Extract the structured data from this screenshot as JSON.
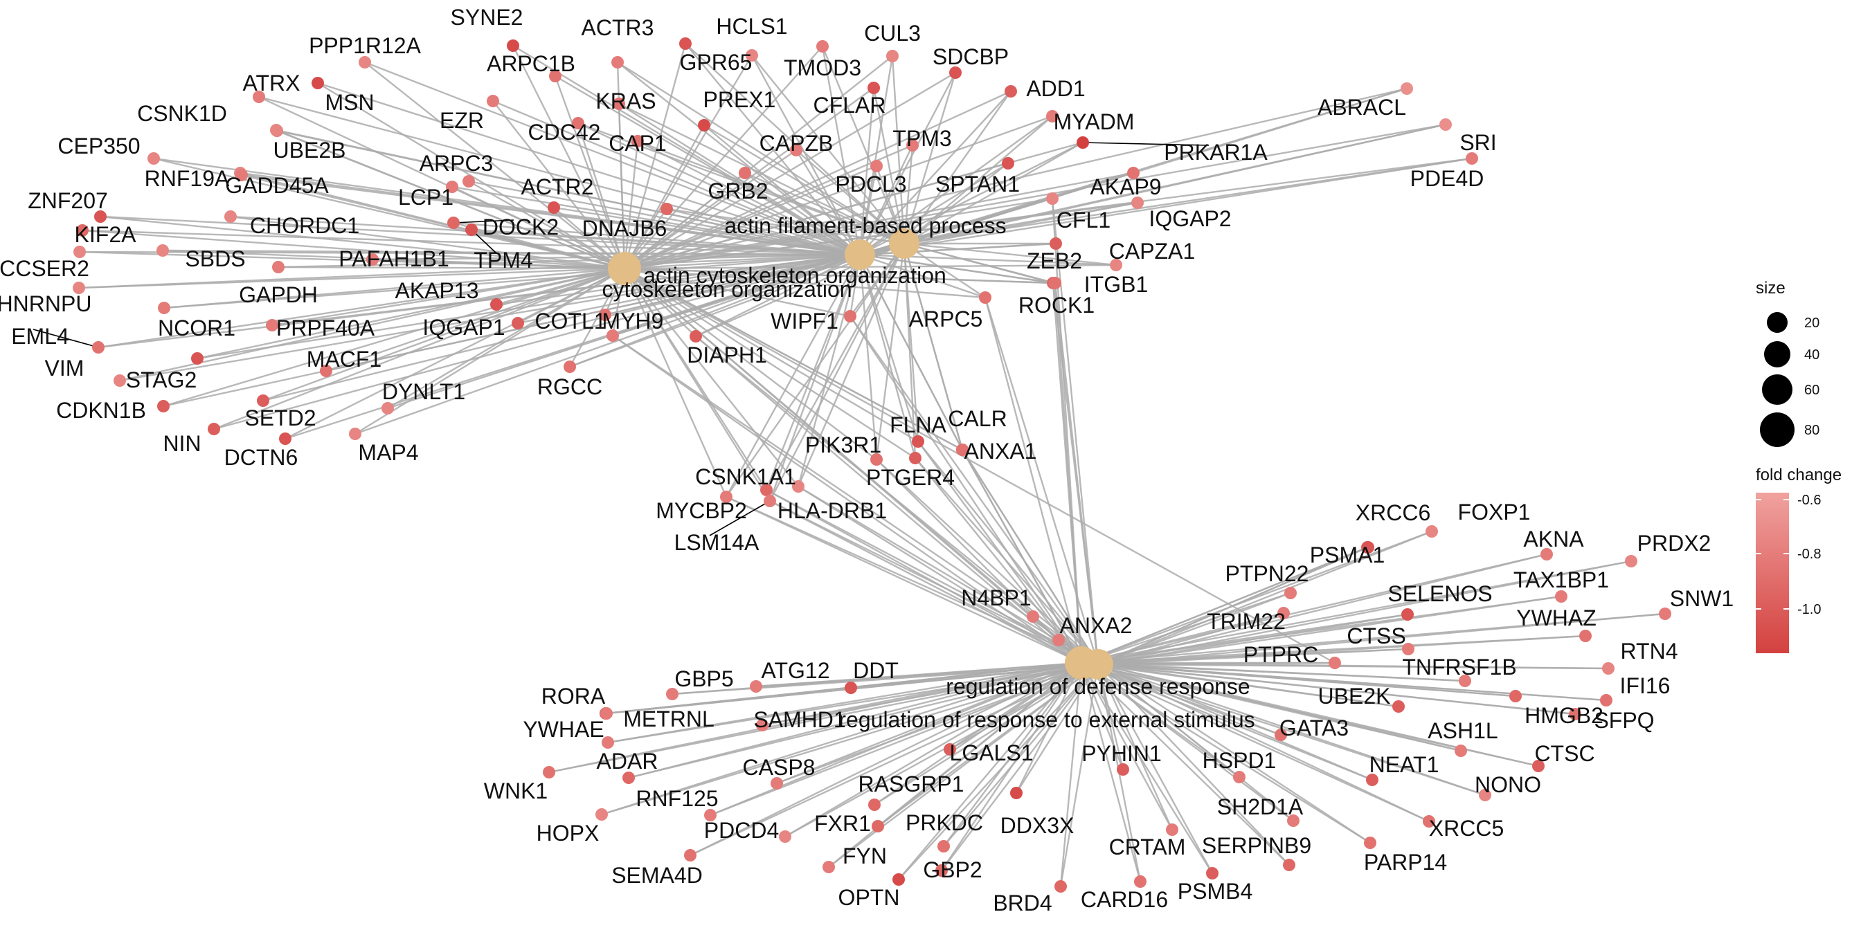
{
  "graph": {
    "category_nodes": [
      {
        "id": "c1",
        "name": "cytoskeleton organization"
      },
      {
        "id": "c2",
        "name": "actin cytoskeleton organization"
      },
      {
        "id": "c3",
        "name": "actin filament-based process"
      },
      {
        "id": "c4",
        "name": "regulation of defense response"
      },
      {
        "id": "c5",
        "name": "regulation of response to external stimulus"
      }
    ],
    "gene_nodes": [
      "SYNE2",
      "PPP1R12A",
      "ACTR3",
      "ARPC1B",
      "HCLS1",
      "GPR65",
      "CUL3",
      "TMOD3",
      "SDCBP",
      "ATRX",
      "MSN",
      "KRAS",
      "PREX1",
      "ADD1",
      "CFLAR",
      "ABRACL",
      "SRI",
      "MYADM",
      "CSNK1D",
      "EZR",
      "CDC42",
      "UBE2B",
      "CAP1",
      "TPM3",
      "CAPZB",
      "PRKAR1A",
      "PDE4D",
      "CEP350",
      "ARPC3",
      "RNF19A",
      "GADD45A",
      "ACTR2",
      "GRB2",
      "PDCL3",
      "SPTAN1",
      "AKAP9",
      "LCP1",
      "ZNF207",
      "DOCK2",
      "CHORDC1",
      "DNAJB6",
      "CFL1",
      "IQGAP2",
      "KIF2A",
      "TPM4",
      "SBDS",
      "PAFAH1B1",
      "ZEB2",
      "CAPZA1",
      "CCSER2",
      "ITGB1",
      "GAPDH",
      "AKAP13",
      "HNRNPU",
      "ROCK1",
      "NCOR1",
      "PRPF40A",
      "IQGAP1",
      "COTL1",
      "MYH9",
      "WIPF1",
      "ARPC5",
      "EML4",
      "VIM",
      "STAG2",
      "MACF1",
      "DIAPH1",
      "RGCC",
      "DYNLT1",
      "CDKN1B",
      "NIN",
      "SETD2",
      "DCTN6",
      "MAP4",
      "FLNA",
      "CALR",
      "PIK3R1",
      "ANXA1",
      "PTGER4",
      "CSNK1A1",
      "MYCBP2",
      "HLA-DRB1",
      "LSM14A",
      "XRCC6",
      "FOXP1",
      "PSMA1",
      "AKNA",
      "PRDX2",
      "PTPN22",
      "TAX1BP1",
      "SELENOS",
      "SNW1",
      "TRIM22",
      "YWHAZ",
      "CTSS",
      "N4BP1",
      "ANXA2",
      "PTPRC",
      "RTN4",
      "TNFRSF1B",
      "IFI16",
      "GBP5",
      "ATG12",
      "DDT",
      "RORA",
      "UBE2K",
      "HMGB2",
      "METRNL",
      "SAMHD1",
      "SFPQ",
      "YWHAE",
      "GATA3",
      "ASH1L",
      "ADAR",
      "CTSC",
      "LGALS1",
      "CASP8",
      "PYHIN1",
      "HSPD1",
      "NEAT1",
      "WNK1",
      "NONO",
      "RNF125",
      "RASGRP1",
      "HOPX",
      "PDCD4",
      "SH2D1A",
      "FXR1",
      "PRKDC",
      "DDX3X",
      "XRCC5",
      "SEMA4D",
      "SERPINB9",
      "CRTAM",
      "PARP14",
      "FYN",
      "GBP2",
      "OPTN",
      "BRD4",
      "CARD16",
      "PSMB4"
    ]
  },
  "legend": {
    "size": {
      "title": "size",
      "ticks": [
        "20",
        "40",
        "60",
        "80"
      ]
    },
    "color": {
      "title": "fold change",
      "ticks": [
        "-0.6",
        "-0.8",
        "-1.0"
      ]
    }
  },
  "colors": {
    "category_node": "#E2BD85",
    "edge": "#ABABAB",
    "gene_low": "#D3413F",
    "gene_high": "#F0A29F"
  }
}
